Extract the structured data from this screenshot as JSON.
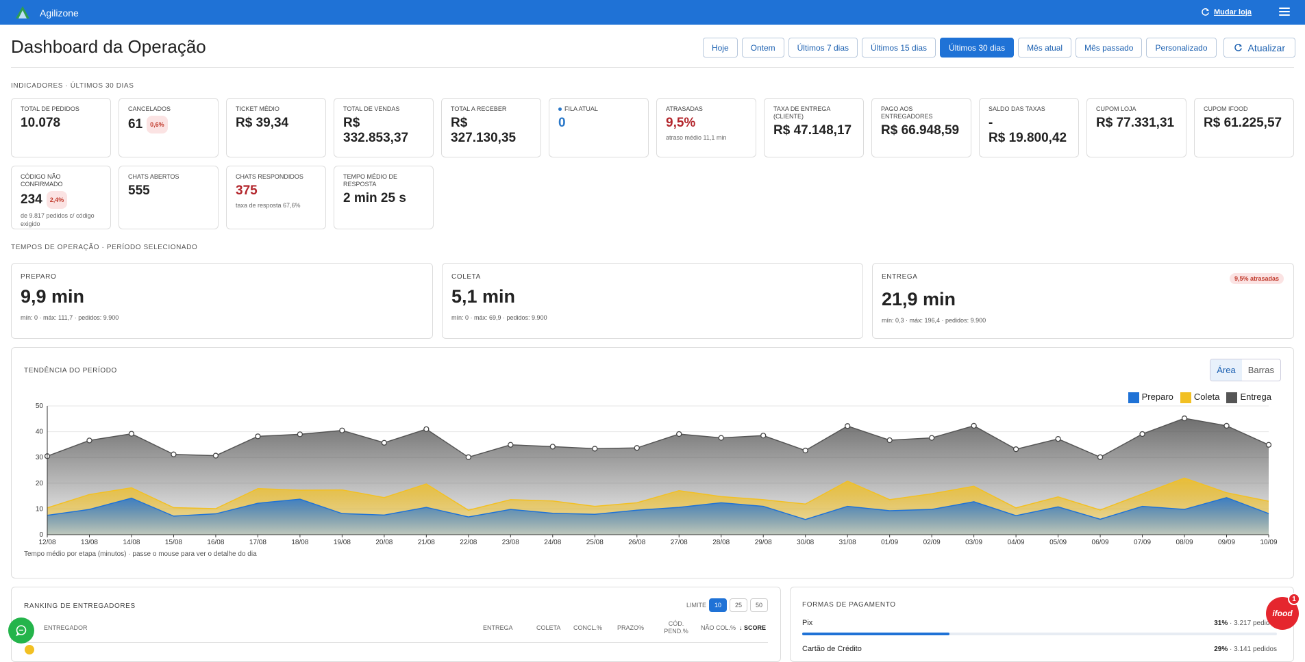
{
  "app": {
    "name": "Agilizone",
    "store_link": "Mudar loja"
  },
  "page": {
    "title": "Dashboard da Operação"
  },
  "filters": [
    "Hoje",
    "Ontem",
    "Últimos 7 dias",
    "Últimos 15 dias",
    "Últimos 30 dias",
    "Mês atual",
    "Mês passado",
    "Personalizado"
  ],
  "active_filter": "Últimos 30 dias",
  "refresh_label": "Atualizar",
  "indicators": {
    "section": "INDICADORES · ÚLTIMOS 30 DIAS",
    "row1": [
      {
        "label": "TOTAL DE PEDIDOS",
        "value": "10.078"
      },
      {
        "label": "CANCELADOS",
        "value": "61",
        "badge": "0,6%"
      },
      {
        "label": "TICKET MÉDIO",
        "value": "R$ 39,34"
      },
      {
        "label": "TOTAL DE VENDAS",
        "value": "R$ 332.853,37"
      },
      {
        "label": "TOTAL A RECEBER",
        "value": "R$ 327.130,35"
      },
      {
        "label": "FILA ATUAL",
        "value": "0"
      },
      {
        "label": "ATRASADAS",
        "value": "9,5%",
        "sub": "atraso médio 11,1 min"
      },
      {
        "label": "TAXA DE ENTREGA (CLIENTE)",
        "value": "R$ 47.148,17"
      },
      {
        "label": "PAGO AOS ENTREGADORES",
        "value": "R$ 66.948,59"
      },
      {
        "label": "SALDO DAS TAXAS",
        "value": "-",
        "value2": "R$ 19.800,42"
      },
      {
        "label": "CUPOM LOJA",
        "value": "R$ 77.331,31"
      },
      {
        "label": "CUPOM IFOOD",
        "value": "R$ 61.225,57"
      }
    ],
    "row2": [
      {
        "label": "CÓDIGO NÃO CONFIRMADO",
        "value": "234",
        "badge": "2,4%",
        "sub": "de 9.817 pedidos c/ código exigido"
      },
      {
        "label": "CHATS ABERTOS",
        "value": "555"
      },
      {
        "label": "CHATS RESPONDIDOS",
        "value": "375",
        "sub": "taxa de resposta 67,6%"
      },
      {
        "label": "TEMPO MÉDIO DE RESPOSTA",
        "value": "2 min 25 s"
      }
    ]
  },
  "operation": {
    "section": "TEMPOS DE OPERAÇÃO · PERÍODO SELECIONADO",
    "cards": [
      {
        "label": "PREPARO",
        "value": "9,9 min",
        "sub": "mín: 0 · máx: 111,7 · pedidos: 9.900"
      },
      {
        "label": "COLETA",
        "value": "5,1 min",
        "sub": "mín: 0 · máx: 69,9 · pedidos: 9.900"
      },
      {
        "label": "ENTREGA",
        "value": "21,9 min",
        "sub": "mín: 0,3 · máx: 196,4 · pedidos: 9.900",
        "badge": "9,5% atrasadas"
      }
    ]
  },
  "trend": {
    "title": "TENDÊNCIA DO PERÍODO",
    "toggle": [
      "Área",
      "Barras"
    ],
    "note": "Tempo médio por etapa (minutos) · passe o mouse para ver o detalhe do dia"
  },
  "chart_data": {
    "type": "area",
    "stacked": true,
    "x": [
      "12/08",
      "13/08",
      "14/08",
      "15/08",
      "16/08",
      "17/08",
      "18/08",
      "19/08",
      "20/08",
      "21/08",
      "22/08",
      "23/08",
      "24/08",
      "25/08",
      "26/08",
      "27/08",
      "28/08",
      "29/08",
      "30/08",
      "31/08",
      "01/09",
      "02/09",
      "03/09",
      "04/09",
      "05/09",
      "06/09",
      "07/09",
      "08/09",
      "09/09",
      "10/09"
    ],
    "ylim": [
      0,
      50
    ],
    "yticks": [
      0,
      10,
      20,
      30,
      40,
      50
    ],
    "grid": true,
    "legend_position": "top-right",
    "series": [
      {
        "name": "Preparo",
        "color": "#1f72d6",
        "values": [
          7.5,
          9.8,
          14.2,
          7.2,
          8.1,
          12.2,
          13.8,
          8.2,
          7.6,
          10.6,
          6.9,
          9.8,
          8.3,
          7.9,
          9.5,
          10.6,
          12.4,
          11.0,
          5.9,
          11.0,
          9.3,
          9.8,
          12.8,
          7.4,
          10.8,
          6.0,
          11.0,
          9.8,
          14.4,
          8.2
        ]
      },
      {
        "name": "Coleta",
        "color": "#f2c023",
        "values": [
          10.4,
          15.6,
          18.2,
          10.5,
          10.1,
          17.9,
          17.3,
          17.4,
          14.4,
          19.7,
          9.5,
          13.6,
          13.1,
          11.0,
          12.4,
          17.1,
          14.8,
          13.6,
          11.9,
          20.8,
          13.6,
          15.9,
          18.8,
          10.4,
          14.7,
          9.6,
          15.8,
          22.0,
          16.3,
          13.0
        ]
      },
      {
        "name": "Entrega",
        "color": "#555555",
        "values": [
          30.5,
          36.6,
          39.2,
          31.2,
          30.7,
          38.2,
          39.0,
          40.5,
          35.7,
          41.0,
          30.1,
          34.9,
          34.2,
          33.4,
          33.7,
          39.1,
          37.6,
          38.5,
          32.7,
          42.2,
          36.7,
          37.6,
          42.3,
          33.2,
          37.2,
          30.1,
          39.1,
          45.2,
          42.3,
          34.9
        ]
      }
    ]
  },
  "ranking": {
    "title": "RANKING DE ENTREGADORES",
    "limit_label": "LIMITE",
    "limits": [
      "10",
      "25",
      "50"
    ],
    "active_limit": "10",
    "columns": [
      "ENTREGADOR",
      "ENTREGA",
      "COLETA",
      "CONCL.%",
      "PRAZO%",
      "CÓD. PEND.%",
      "NÃO COL.%",
      "SCORE"
    ]
  },
  "payments": {
    "title": "FORMAS DE PAGAMENTO",
    "rows": [
      {
        "label": "Pix",
        "pct": "31%",
        "detail": "· 3.217 pedidos",
        "fraction": 0.31
      },
      {
        "label": "Cartão de Crédito",
        "pct": "29%",
        "detail": "· 3.141 pedidos",
        "fraction": 0.29
      }
    ]
  },
  "ifood": {
    "label": "ifood",
    "badge": "1"
  }
}
